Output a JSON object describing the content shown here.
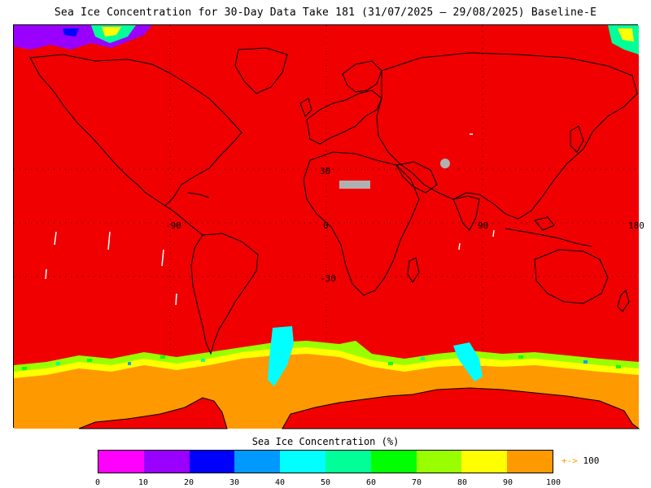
{
  "title": "Sea Ice Concentration for 30-Day Data Take 181 (31/07/2025 – 29/08/2025) Baseline-E",
  "map": {
    "background_color": "#f00000",
    "ice_color": "#ff9900",
    "no_data_color": "#b0b0b0",
    "longitude_labels": [
      "-90",
      "0",
      "90",
      "180"
    ],
    "latitude_labels": [
      "30",
      "-30"
    ]
  },
  "legend": {
    "title": "Sea Ice Concentration (%)",
    "colors": [
      "#ff00ff",
      "#9900ff",
      "#0000ff",
      "#0099ff",
      "#00ffff",
      "#00ff99",
      "#00ff00",
      "#99ff00",
      "#ffff00",
      "#ff9900"
    ],
    "ticks": [
      "0",
      "10",
      "20",
      "30",
      "40",
      "50",
      "60",
      "70",
      "80",
      "90",
      "100"
    ],
    "overflow_arrow": "+->",
    "overflow_value": "100"
  }
}
